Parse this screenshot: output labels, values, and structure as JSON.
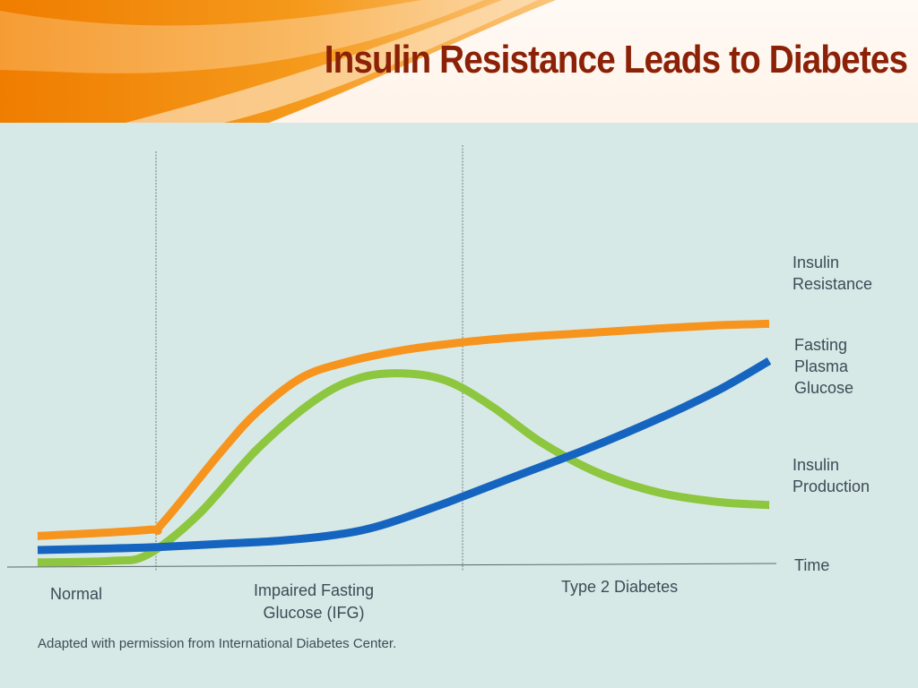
{
  "slide": {
    "title": "Insulin Resistance Leads to Diabetes",
    "accent_color": "#f08a10",
    "title_color": "#8b2106",
    "background_color": "#d7e9e6"
  },
  "chart_data": {
    "type": "line",
    "title": "Insulin Resistance Leads to Diabetes",
    "xlabel": "Time",
    "ylabel": "",
    "x_axis_numeric": false,
    "y_axis_numeric": false,
    "grid": false,
    "stages": [
      "Normal",
      "Impaired Fasting Glucose (IFG)",
      "Type 2 Diabetes"
    ],
    "stage_labels": [
      [
        "Normal"
      ],
      [
        "Impaired Fasting",
        "Glucose (IFG)"
      ],
      [
        "Type 2 Diabetes"
      ]
    ],
    "stage_boundaries_note": "dashed vertical dividers between stages",
    "series": [
      {
        "name": "Insulin Resistance",
        "label_lines": [
          "Insulin",
          "Resistance"
        ],
        "color": "#f7941d",
        "x": [
          0.0,
          0.15,
          0.17,
          0.25,
          0.3,
          0.36,
          0.42,
          0.5,
          0.58,
          0.65,
          0.75,
          0.85,
          0.93,
          1.0
        ],
        "y": [
          0.1,
          0.12,
          0.14,
          0.37,
          0.5,
          0.61,
          0.66,
          0.7,
          0.725,
          0.74,
          0.755,
          0.77,
          0.78,
          0.785
        ]
      },
      {
        "name": "Fasting Plasma Glucose",
        "label_lines": [
          "Fasting",
          "Plasma",
          "Glucose"
        ],
        "color": "#1565c0",
        "x": [
          0.0,
          0.1,
          0.17,
          0.25,
          0.33,
          0.41,
          0.47,
          0.55,
          0.65,
          0.75,
          0.85,
          0.93,
          1.0
        ],
        "y": [
          0.055,
          0.06,
          0.065,
          0.075,
          0.085,
          0.105,
          0.135,
          0.2,
          0.29,
          0.38,
          0.48,
          0.57,
          0.665
        ]
      },
      {
        "name": "Insulin Production",
        "label_lines": [
          "Insulin",
          "Production"
        ],
        "color": "#8dc63f",
        "x": [
          0.0,
          0.1,
          0.15,
          0.22,
          0.3,
          0.38,
          0.44,
          0.5,
          0.56,
          0.62,
          0.69,
          0.77,
          0.85,
          0.93,
          1.0
        ],
        "y": [
          0.015,
          0.02,
          0.04,
          0.17,
          0.38,
          0.54,
          0.61,
          0.625,
          0.6,
          0.52,
          0.4,
          0.3,
          0.24,
          0.21,
          0.2
        ]
      }
    ],
    "footnote": "Adapted with permission from International Diabetes Center."
  }
}
